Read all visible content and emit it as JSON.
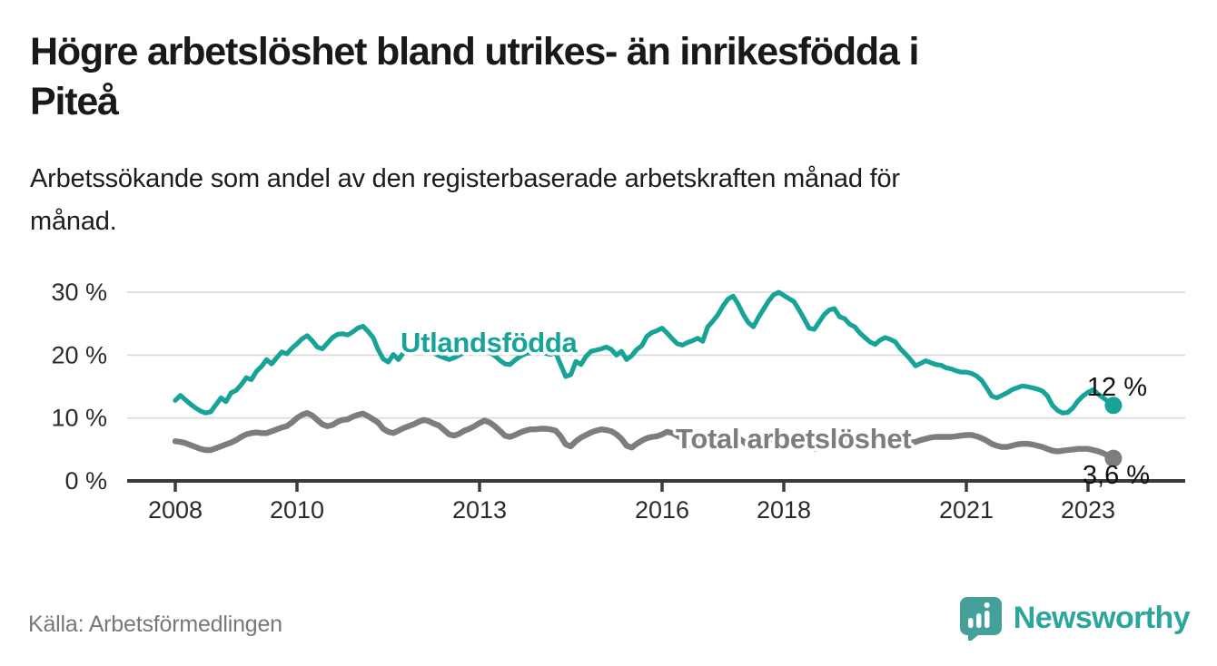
{
  "header": {
    "title_line1": "Högre arbetslöshet bland utrikes- än inrikesfödda i",
    "title_line2": "Piteå",
    "subtitle_line1": "Arbetssökande som andel av den registerbaserade arbetskraften månad för",
    "subtitle_line2": "månad."
  },
  "footer": {
    "source": "Källa: Arbetsförmedlingen",
    "brand": "Newsworthy"
  },
  "colors": {
    "accent_teal": "#17a398",
    "series_gray": "#7d7d7d",
    "grid": "#d9d9d9",
    "axis": "#3a3a3a",
    "tick_label": "#2b2b2b",
    "end_label": "#111111",
    "logo_bubble": "#46a09a",
    "logo_text": "#2ca69d"
  },
  "chart_data": {
    "type": "line",
    "title": "Högre arbetslöshet bland utrikes- än inrikesfödda i Piteå",
    "subtitle": "Arbetssökande som andel av den registerbaserade arbetskraften månad för månad.",
    "source": "Källa: Arbetsförmedlingen",
    "x_unit": "month",
    "x_start": "2008-01",
    "x_end": "2023-06",
    "x_tick_years": [
      2008,
      2010,
      2013,
      2016,
      2018,
      2021,
      2023
    ],
    "x_tick_labels": [
      "2008",
      "2010",
      "2013",
      "2016",
      "2018",
      "2021",
      "2023"
    ],
    "y_tick_values": [
      0,
      10,
      20,
      30
    ],
    "y_tick_labels": [
      "0 %",
      "10 %",
      "20 %",
      "30 %"
    ],
    "ylim": [
      0,
      32
    ],
    "grid": "horizontal",
    "legend_position": "inline-labels",
    "series": [
      {
        "name": "Utlandsfödda",
        "color": "#17a398",
        "end_label": "12 %",
        "end_value": 12.0,
        "values": [
          12.8,
          13.6,
          12.9,
          12.2,
          11.6,
          11.1,
          10.8,
          11.0,
          12.1,
          13.2,
          12.6,
          14.0,
          14.4,
          15.3,
          16.4,
          16.1,
          17.4,
          18.2,
          19.3,
          18.6,
          19.6,
          20.5,
          20.2,
          21.1,
          21.8,
          22.6,
          23.1,
          22.3,
          21.3,
          21.0,
          21.9,
          22.8,
          23.3,
          23.4,
          23.2,
          23.7,
          24.3,
          24.6,
          23.8,
          22.8,
          20.9,
          19.4,
          18.9,
          20.1,
          19.3,
          20.4,
          20.7,
          21.0,
          21.2,
          21.0,
          20.6,
          20.3,
          19.9,
          19.6,
          19.3,
          19.6,
          20.0,
          20.4,
          20.6,
          20.8,
          21.0,
          20.8,
          20.4,
          19.9,
          19.2,
          18.6,
          18.5,
          19.2,
          19.8,
          20.2,
          20.4,
          20.4,
          20.4,
          20.3,
          20.1,
          20.4,
          18.5,
          16.6,
          16.9,
          19.0,
          18.5,
          19.8,
          20.6,
          20.8,
          21.0,
          21.3,
          20.9,
          20.0,
          20.6,
          19.3,
          19.9,
          20.9,
          21.5,
          23.0,
          23.6,
          23.9,
          24.3,
          23.5,
          22.6,
          21.8,
          21.6,
          22.0,
          22.3,
          22.7,
          22.2,
          24.5,
          25.4,
          26.4,
          27.8,
          28.9,
          29.4,
          28.1,
          26.5,
          25.2,
          24.5,
          26.0,
          27.3,
          28.6,
          29.6,
          30.0,
          29.5,
          29.0,
          28.5,
          27.2,
          25.8,
          24.3,
          24.1,
          25.3,
          26.5,
          27.2,
          27.4,
          26.1,
          25.8,
          24.9,
          24.5,
          23.5,
          22.8,
          22.1,
          21.7,
          22.4,
          22.8,
          22.5,
          22.1,
          21.0,
          20.2,
          19.3,
          18.3,
          18.7,
          19.1,
          18.8,
          18.5,
          18.4,
          18.0,
          17.8,
          17.5,
          17.3,
          17.3,
          17.1,
          16.7,
          16.0,
          14.8,
          13.5,
          13.2,
          13.6,
          14.0,
          14.5,
          14.8,
          15.1,
          15.0,
          14.8,
          14.6,
          14.3,
          13.5,
          12.0,
          11.2,
          10.8,
          10.9,
          11.6,
          12.7,
          13.5,
          14.1,
          14.5,
          13.8,
          13.2,
          12.6,
          12.0
        ]
      },
      {
        "name": "Total arbetslöshet",
        "color": "#7d7d7d",
        "end_label": "3,6 %",
        "end_value": 3.6,
        "values": [
          6.3,
          6.2,
          6.0,
          5.7,
          5.4,
          5.1,
          4.9,
          4.9,
          5.2,
          5.5,
          5.8,
          6.1,
          6.5,
          7.0,
          7.4,
          7.6,
          7.7,
          7.6,
          7.6,
          7.9,
          8.2,
          8.5,
          8.7,
          9.3,
          10.0,
          10.5,
          10.8,
          10.4,
          9.7,
          9.0,
          8.7,
          8.9,
          9.4,
          9.7,
          9.8,
          10.2,
          10.5,
          10.7,
          10.3,
          9.8,
          9.3,
          8.3,
          7.8,
          7.6,
          8.0,
          8.4,
          8.7,
          9.0,
          9.4,
          9.7,
          9.5,
          9.1,
          8.8,
          8.1,
          7.4,
          7.2,
          7.5,
          8.0,
          8.3,
          8.7,
          9.2,
          9.6,
          9.3,
          8.7,
          8.0,
          7.2,
          7.0,
          7.3,
          7.7,
          8.0,
          8.2,
          8.2,
          8.3,
          8.3,
          8.2,
          8.0,
          7.1,
          5.8,
          5.5,
          6.3,
          6.9,
          7.3,
          7.7,
          8.0,
          8.2,
          8.1,
          7.9,
          7.4,
          6.7,
          5.6,
          5.3,
          5.9,
          6.4,
          6.8,
          7.0,
          7.1,
          7.4,
          7.8,
          7.6,
          7.2,
          6.7,
          5.9,
          5.7,
          6.1,
          6.5,
          6.8,
          7.0,
          7.2,
          7.4,
          7.3,
          7.1,
          6.8,
          6.3,
          5.6,
          5.4,
          5.8,
          6.2,
          6.5,
          6.7,
          6.9,
          7.1,
          7.0,
          6.8,
          6.4,
          5.9,
          5.3,
          5.1,
          5.5,
          5.8,
          6.1,
          6.3,
          6.5,
          6.7,
          6.6,
          6.4,
          6.1,
          5.7,
          5.3,
          5.2,
          5.5,
          5.7,
          5.9,
          6.0,
          6.1,
          6.2,
          6.1,
          6.2,
          6.5,
          6.7,
          6.9,
          7.0,
          7.0,
          7.0,
          7.0,
          7.1,
          7.2,
          7.3,
          7.3,
          7.1,
          6.8,
          6.4,
          5.9,
          5.6,
          5.4,
          5.4,
          5.6,
          5.8,
          5.9,
          5.9,
          5.8,
          5.6,
          5.4,
          5.1,
          4.8,
          4.7,
          4.8,
          4.9,
          5.0,
          5.1,
          5.1,
          5.1,
          4.9,
          4.7,
          4.4,
          4.0,
          3.6
        ]
      }
    ]
  }
}
